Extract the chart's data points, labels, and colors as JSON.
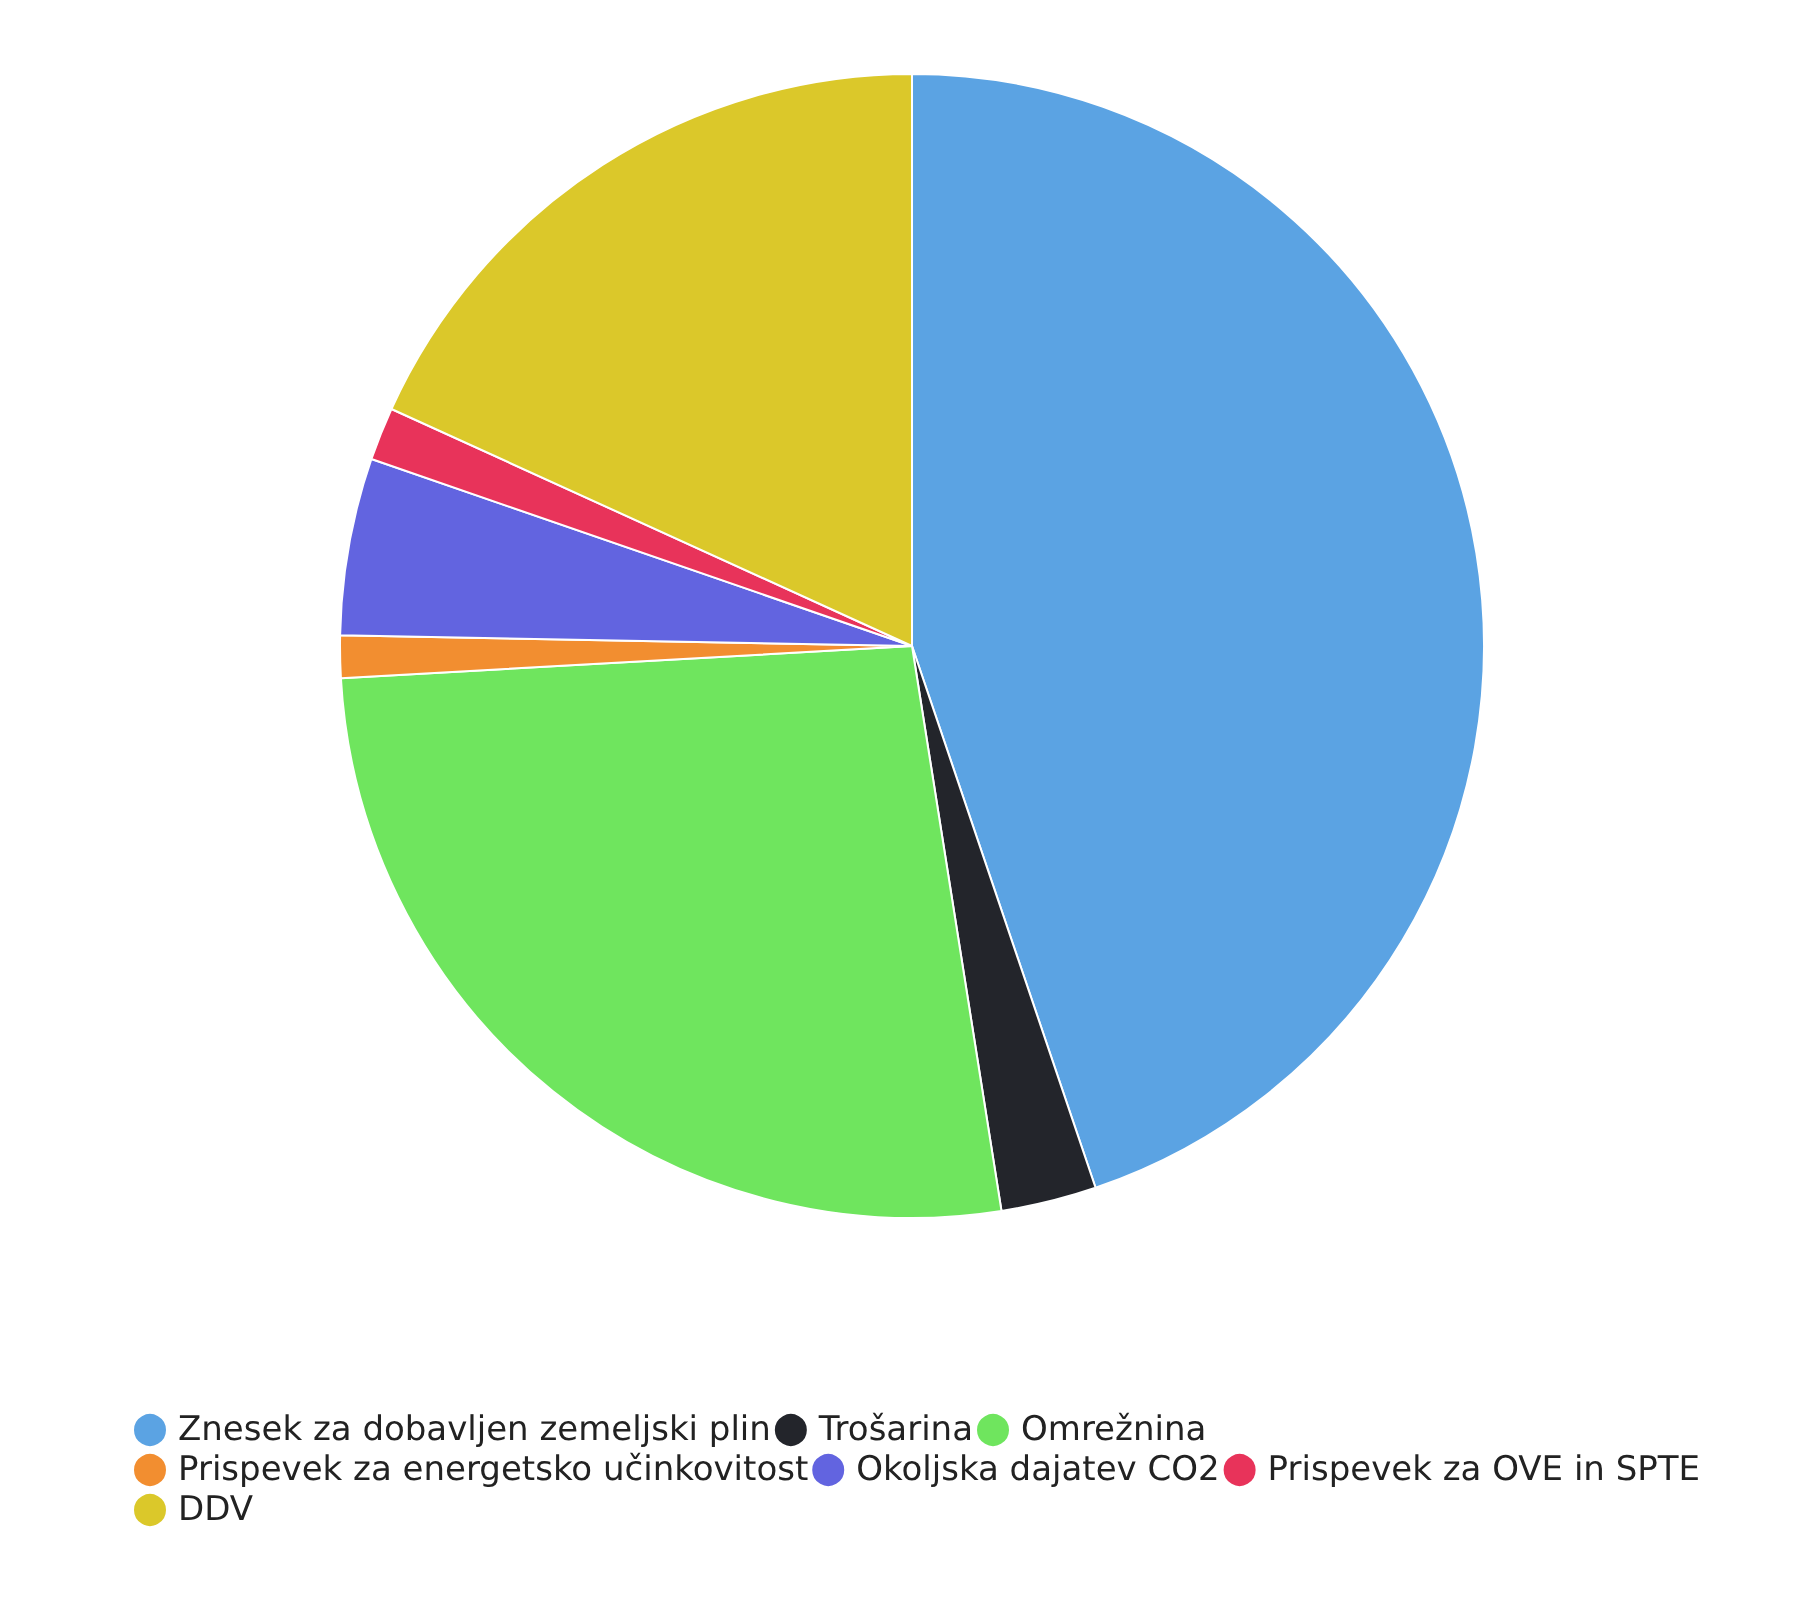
{
  "chart_data": {
    "type": "pie",
    "categories": [
      "Znesek za dobavljen zemeljski plin",
      "Trošarina",
      "Omrežnina",
      "Prispevek za energetsko učinkovitost",
      "Okoljska dajatev CO2",
      "Prispevek za OVE in SPTE",
      "DDV"
    ],
    "values": [
      44.8,
      2.7,
      26.6,
      1.2,
      5.0,
      1.5,
      18.2
    ],
    "colors": [
      "#5ba3e3",
      "#23252b",
      "#6fe55e",
      "#f28e30",
      "#6264e0",
      "#e8335a",
      "#dbc82a"
    ],
    "legend": "bottom"
  }
}
